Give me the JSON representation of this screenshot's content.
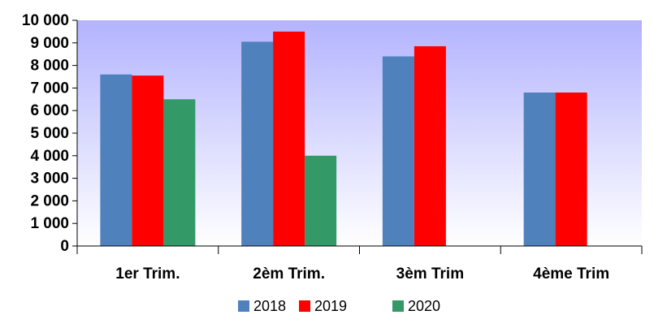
{
  "chart_data": {
    "type": "bar",
    "categories": [
      "1er Trim.",
      "2èm Trim.",
      "3èm Trim",
      "4ème Trim"
    ],
    "series": [
      {
        "name": "2018",
        "values": [
          7600,
          9050,
          8400,
          6800
        ]
      },
      {
        "name": "2019",
        "values": [
          7550,
          9500,
          8850,
          6800
        ]
      },
      {
        "name": "2020",
        "values": [
          6500,
          4000,
          null,
          null
        ]
      }
    ],
    "y_tick_labels": [
      "0",
      "1 000",
      "2 000",
      "3 000",
      "4 000",
      "5 000",
      "6 000",
      "7 000",
      "8 000",
      "9 000",
      "10 000"
    ],
    "ylim": [
      0,
      10000
    ],
    "grid": false,
    "legend_position": "bottom",
    "title": "",
    "xlabel": "",
    "ylabel": ""
  },
  "colors": {
    "series": [
      "#4f81bd",
      "#ff0000",
      "#339966"
    ],
    "plot_bg_top": "#b3b3ff",
    "plot_bg_bottom": "#ffffff"
  }
}
